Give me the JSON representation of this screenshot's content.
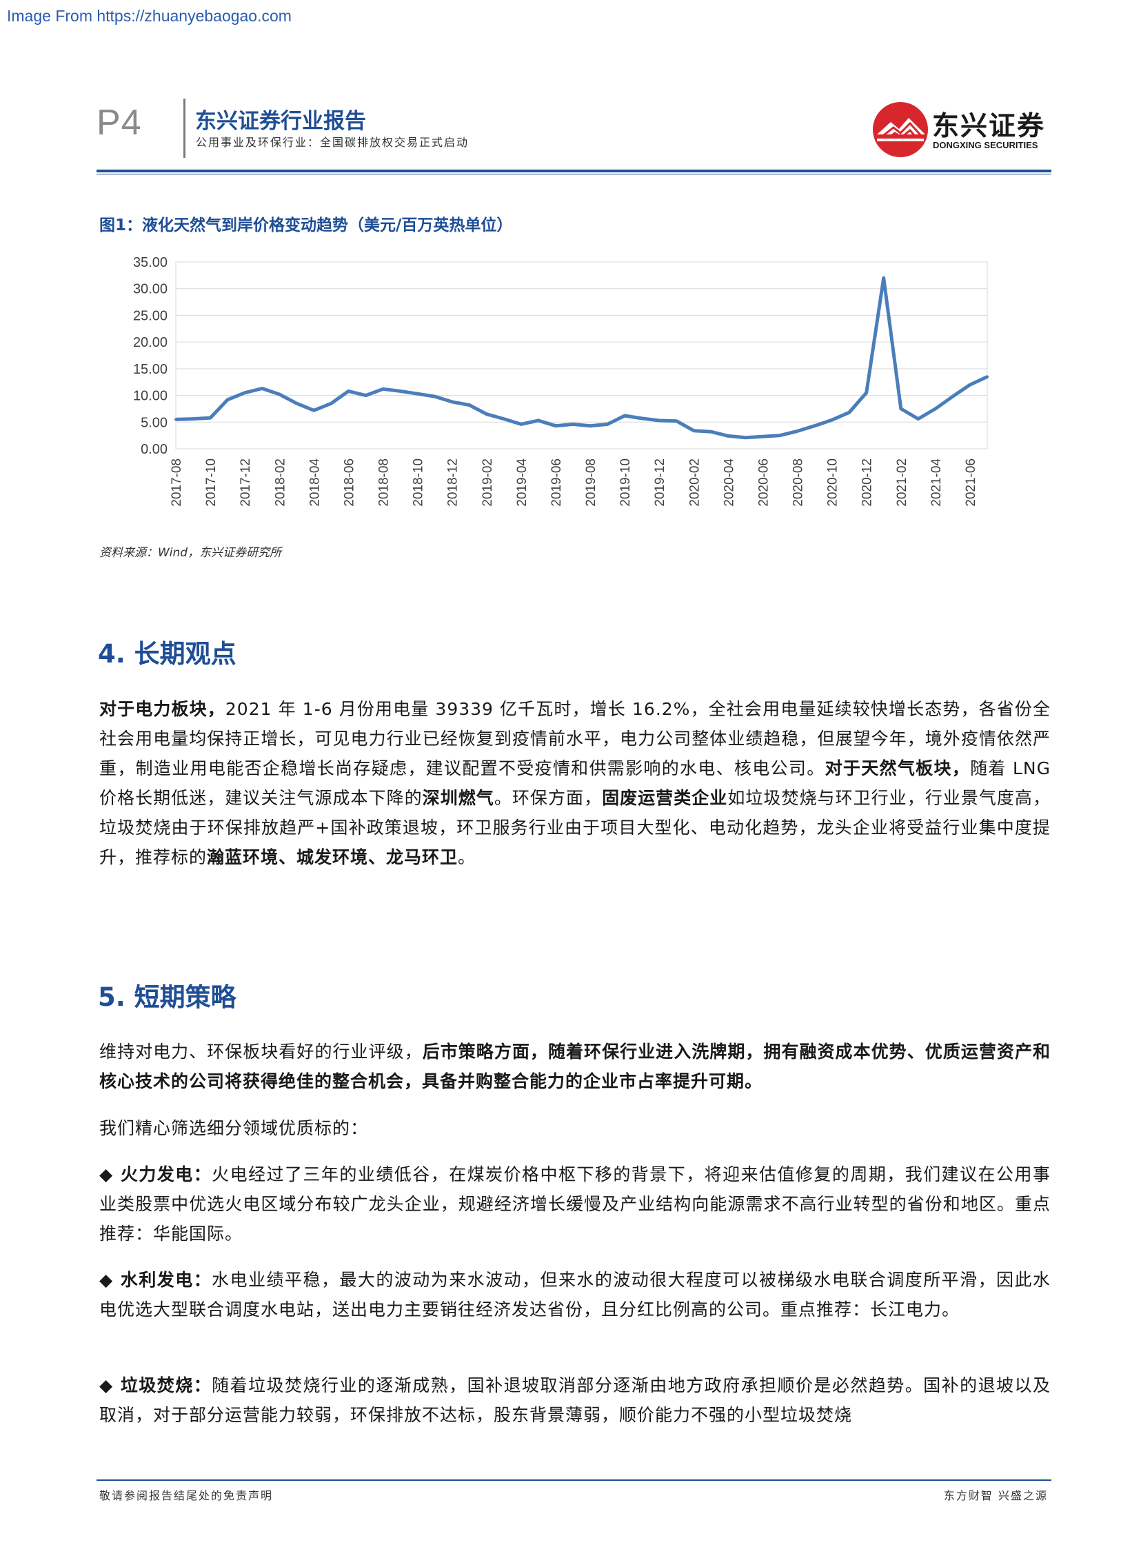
{
  "watermark": "Image From https://zhuanyebaogao.com",
  "header": {
    "page_no": "P4",
    "title": "东兴证券行业报告",
    "subtitle": "公用事业及环保行业：全国碳排放权交易正式启动",
    "logo_cn": "东兴证券",
    "logo_en": "DONGXING SECURITIES"
  },
  "figure": {
    "title": "图1：液化天然气到岸价格变动趋势（美元/百万英热单位）",
    "source": "资料来源：Wind，东兴证券研究所"
  },
  "chart_data": {
    "type": "line",
    "title": "",
    "xlabel": "",
    "ylabel": "",
    "ylim": [
      0,
      35
    ],
    "y_ticks": [
      "0.00",
      "5.00",
      "10.00",
      "15.00",
      "20.00",
      "25.00",
      "30.00",
      "35.00"
    ],
    "x_ticks": [
      "2017-08",
      "2017-10",
      "2017-12",
      "2018-02",
      "2018-04",
      "2018-06",
      "2018-08",
      "2018-10",
      "2018-12",
      "2019-02",
      "2019-04",
      "2019-06",
      "2019-08",
      "2019-10",
      "2019-12",
      "2020-02",
      "2020-04",
      "2020-06",
      "2020-08",
      "2020-10",
      "2020-12",
      "2021-02",
      "2021-04",
      "2021-06"
    ],
    "grid": true,
    "legend": "none",
    "color": "#4a7ebb",
    "x": [
      "2017-08",
      "2017-09",
      "2017-10",
      "2017-11",
      "2017-12",
      "2018-01",
      "2018-02",
      "2018-03",
      "2018-04",
      "2018-05",
      "2018-06",
      "2018-07",
      "2018-08",
      "2018-09",
      "2018-10",
      "2018-11",
      "2018-12",
      "2019-01",
      "2019-02",
      "2019-03",
      "2019-04",
      "2019-05",
      "2019-06",
      "2019-07",
      "2019-08",
      "2019-09",
      "2019-10",
      "2019-11",
      "2019-12",
      "2020-01",
      "2020-02",
      "2020-03",
      "2020-04",
      "2020-05",
      "2020-06",
      "2020-07",
      "2020-08",
      "2020-09",
      "2020-10",
      "2020-11",
      "2020-12",
      "2021-01",
      "2021-02",
      "2021-03",
      "2021-04",
      "2021-05",
      "2021-06",
      "2021-07"
    ],
    "values": [
      5.5,
      5.6,
      5.8,
      9.2,
      10.5,
      11.3,
      10.2,
      8.5,
      7.2,
      8.5,
      10.8,
      10.0,
      11.2,
      10.8,
      10.3,
      9.8,
      8.8,
      8.2,
      6.5,
      5.6,
      4.6,
      5.3,
      4.3,
      4.6,
      4.3,
      4.6,
      6.2,
      5.7,
      5.3,
      5.2,
      3.4,
      3.2,
      2.4,
      2.1,
      2.3,
      2.5,
      3.3,
      4.3,
      5.4,
      6.8,
      10.5,
      32.0,
      7.5,
      5.6,
      7.5,
      9.8,
      12.0,
      13.5
    ]
  },
  "section4": {
    "heading": "4. 长期观点",
    "p1_b1": "对于电力板块，",
    "p1_t1": "2021 年 1-6 月份用电量 39339 亿千瓦时，增长 16.2%，全社会用电量延续较快增长态势，各省份全社会用电量均保持正增长，可见电力行业已经恢复到疫情前水平，电力公司整体业绩趋稳，但展望今年，境外疫情依然严重，制造业用电能否企稳增长尚存疑虑，建议配置不受疫情和供需影响的水电、核电公司。",
    "p1_b2": "对于天然气板块，",
    "p1_t2": "随着 LNG 价格长期低迷，建议关注气源成本下降的",
    "p1_b3": "深圳燃气",
    "p1_t3": "。环保方面，",
    "p1_b4": "固废运营类企业",
    "p1_t4": "如垃圾焚烧与环卫行业，行业景气度高，垃圾焚烧由于环保排放趋严+国补政策退坡，环卫服务行业由于项目大型化、电动化趋势，龙头企业将受益行业集中度提升，推荐标的",
    "p1_b5": "瀚蓝环境、城发环境、龙马环卫",
    "p1_t5": "。"
  },
  "section5": {
    "heading": "5. 短期策略",
    "p1_t1": "维持对电力、环保板块看好的行业评级，",
    "p1_b1": "后市策略方面，随着环保行业进入洗牌期，拥有融资成本优势、优质运营资产和核心技术的公司将获得绝佳的整合机会，具备并购整合能力的企业市占率提升可期。",
    "p2": "我们精心筛选细分领域优质标的：",
    "b1_label": "◆ 火力发电：",
    "b1_text": "火电经过了三年的业绩低谷，在煤炭价格中枢下移的背景下，将迎来估值修复的周期，我们建议在公用事业类股票中优选火电区域分布较广龙头企业，规避经济增长缓慢及产业结构向能源需求不高行业转型的省份和地区。重点推荐：华能国际。",
    "b2_label": "◆ 水利发电：",
    "b2_text": "水电业绩平稳，最大的波动为来水波动，但来水的波动很大程度可以被梯级水电联合调度所平滑，因此水电优选大型联合调度水电站，送出电力主要销往经济发达省份，且分红比例高的公司。重点推荐：长江电力。",
    "b3_label": "◆ 垃圾焚烧：",
    "b3_text": "随着垃圾焚烧行业的逐渐成熟，国补退坡取消部分逐渐由地方政府承担顺价是必然趋势。国补的退坡以及取消，对于部分运营能力较弱，环保排放不达标，股东背景薄弱，顺价能力不强的小型垃圾焚烧"
  },
  "footer": {
    "left": "敬请参阅报告结尾处的免责声明",
    "right": "东方财智 兴盛之源"
  }
}
